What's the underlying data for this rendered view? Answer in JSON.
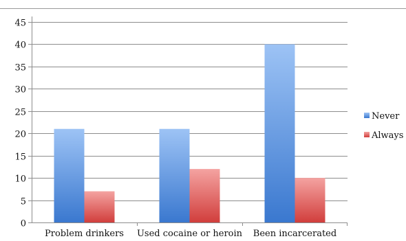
{
  "chart_data": {
    "type": "bar",
    "categories": [
      "Problem drinkers",
      "Used cocaine or heroin",
      "Been incarcerated"
    ],
    "series": [
      {
        "name": "Never",
        "values": [
          21,
          21,
          40
        ],
        "color": "#4f81bd"
      },
      {
        "name": "Always",
        "values": [
          7,
          12,
          10
        ],
        "color": "#c0504d"
      }
    ],
    "ylim": [
      0,
      45
    ],
    "yticks": [
      0,
      5,
      10,
      15,
      20,
      25,
      30,
      35,
      40,
      45
    ],
    "grid": true,
    "legend_position": "right"
  }
}
